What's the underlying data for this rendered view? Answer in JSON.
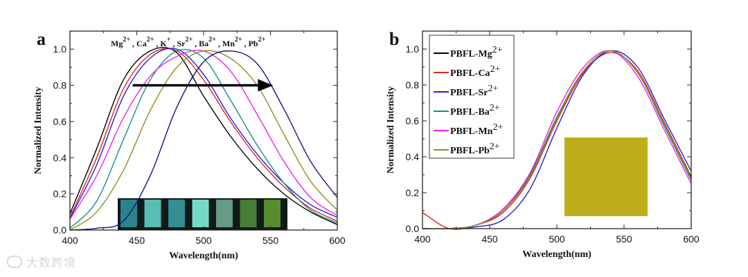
{
  "chart_data": [
    {
      "type": "line",
      "panel_label": "a",
      "xlabel": "Wavelength(nm)",
      "ylabel": "Normalized Intensity",
      "xlim": [
        400,
        600
      ],
      "ylim": [
        0,
        1.1
      ],
      "xticks": [
        400,
        450,
        500,
        550,
        600
      ],
      "yticks": [
        0.0,
        0.2,
        0.4,
        0.6,
        0.8,
        1.0
      ],
      "grid": false,
      "ion_labels": [
        {
          "base": "Mg",
          "sup": "2+"
        },
        {
          "base": ", Ca",
          "sup": "2+"
        },
        {
          "base": ", K",
          "sup": "+"
        },
        {
          "base": ", Sr",
          "sup": "2+"
        },
        {
          "base": ", Ba",
          "sup": "2+"
        },
        {
          "base": ", Mn",
          "sup": "2+"
        },
        {
          "base": ", Pb",
          "sup": "2+"
        }
      ],
      "annotation_arrow": {
        "from": [
          447,
          0.8
        ],
        "to": [
          552,
          0.8
        ],
        "meaning": "red shift"
      },
      "inset": "photo of seven vials under UV light (cyan to green)",
      "x": [
        400,
        420,
        440,
        460,
        480,
        500,
        520,
        540,
        560,
        580,
        600
      ],
      "series": [
        {
          "name": "Mg2+",
          "color": "#000000",
          "values": [
            0.09,
            0.45,
            0.83,
            0.99,
            0.98,
            0.74,
            0.52,
            0.34,
            0.2,
            0.1,
            0.03
          ]
        },
        {
          "name": "Ca2+",
          "color": "#e8201a",
          "values": [
            0.07,
            0.4,
            0.78,
            0.97,
            0.99,
            0.83,
            0.6,
            0.4,
            0.24,
            0.12,
            0.05
          ]
        },
        {
          "name": "K+",
          "color": "#1f1fd6",
          "values": [
            0.065,
            0.36,
            0.74,
            0.95,
            1.0,
            0.86,
            0.62,
            0.42,
            0.26,
            0.14,
            0.07
          ]
        },
        {
          "name": "Sr2+",
          "color": "#138f86",
          "values": [
            0.01,
            0.16,
            0.5,
            0.83,
            0.99,
            0.95,
            0.72,
            0.47,
            0.26,
            0.11,
            0.04
          ]
        },
        {
          "name": "Ba2+",
          "color": "#f01ef0",
          "values": [
            0.06,
            0.3,
            0.62,
            0.85,
            0.96,
            0.99,
            0.88,
            0.64,
            0.38,
            0.18,
            0.08
          ]
        },
        {
          "name": "Mn2+",
          "color": "#8f8f1a",
          "values": [
            0.0,
            0.1,
            0.33,
            0.66,
            0.9,
            0.99,
            0.95,
            0.8,
            0.53,
            0.27,
            0.11
          ]
        },
        {
          "name": "Pb2+",
          "color": "#14148a",
          "values": [
            0.0,
            0.01,
            0.05,
            0.3,
            0.68,
            0.93,
            0.99,
            0.92,
            0.67,
            0.38,
            0.18
          ]
        }
      ]
    },
    {
      "type": "line",
      "panel_label": "b",
      "xlabel": "Wavelength(nm)",
      "ylabel": "Normalized Intensity",
      "xlim": [
        400,
        600
      ],
      "ylim": [
        0,
        1.1
      ],
      "xticks": [
        400,
        450,
        500,
        550,
        600
      ],
      "yticks": [
        0.0,
        0.2,
        0.4,
        0.6,
        0.8,
        1.0
      ],
      "grid": false,
      "legend_position": "top-left",
      "inset": "photo of yellow film",
      "x": [
        400,
        420,
        440,
        460,
        480,
        500,
        520,
        540,
        560,
        580,
        600
      ],
      "series": [
        {
          "name": "PBFL-Mg",
          "sup": "2+",
          "color": "#000000",
          "values": [
            0.0,
            0.0,
            0.02,
            0.1,
            0.3,
            0.62,
            0.88,
            0.99,
            0.87,
            0.58,
            0.29
          ]
        },
        {
          "name": "PBFL-Ca",
          "sup": "2+",
          "color": "#e8201a",
          "values": [
            0.09,
            0.0,
            0.02,
            0.09,
            0.28,
            0.6,
            0.87,
            0.98,
            0.88,
            0.59,
            0.29
          ]
        },
        {
          "name": "PBFL-Sr",
          "sup": "2+",
          "color": "#1f1fd6",
          "values": [
            0.0,
            0.0,
            0.01,
            0.05,
            0.22,
            0.56,
            0.86,
            0.99,
            0.9,
            0.61,
            0.32
          ]
        },
        {
          "name": "PBFL-Ba",
          "sup": "2+",
          "color": "#138f86",
          "values": [
            0.0,
            0.0,
            0.02,
            0.1,
            0.3,
            0.62,
            0.88,
            0.99,
            0.87,
            0.57,
            0.27
          ]
        },
        {
          "name": "PBFL-Mn",
          "sup": "2+",
          "color": "#f01ef0",
          "values": [
            0.0,
            0.0,
            0.02,
            0.11,
            0.31,
            0.65,
            0.9,
            0.99,
            0.85,
            0.55,
            0.25
          ]
        },
        {
          "name": "PBFL-Pb",
          "sup": "2+",
          "color": "#8f8f1a",
          "values": [
            0.0,
            0.0,
            0.02,
            0.1,
            0.29,
            0.61,
            0.88,
            0.99,
            0.87,
            0.58,
            0.28
          ]
        }
      ]
    }
  ],
  "watermark": "大数跨境"
}
